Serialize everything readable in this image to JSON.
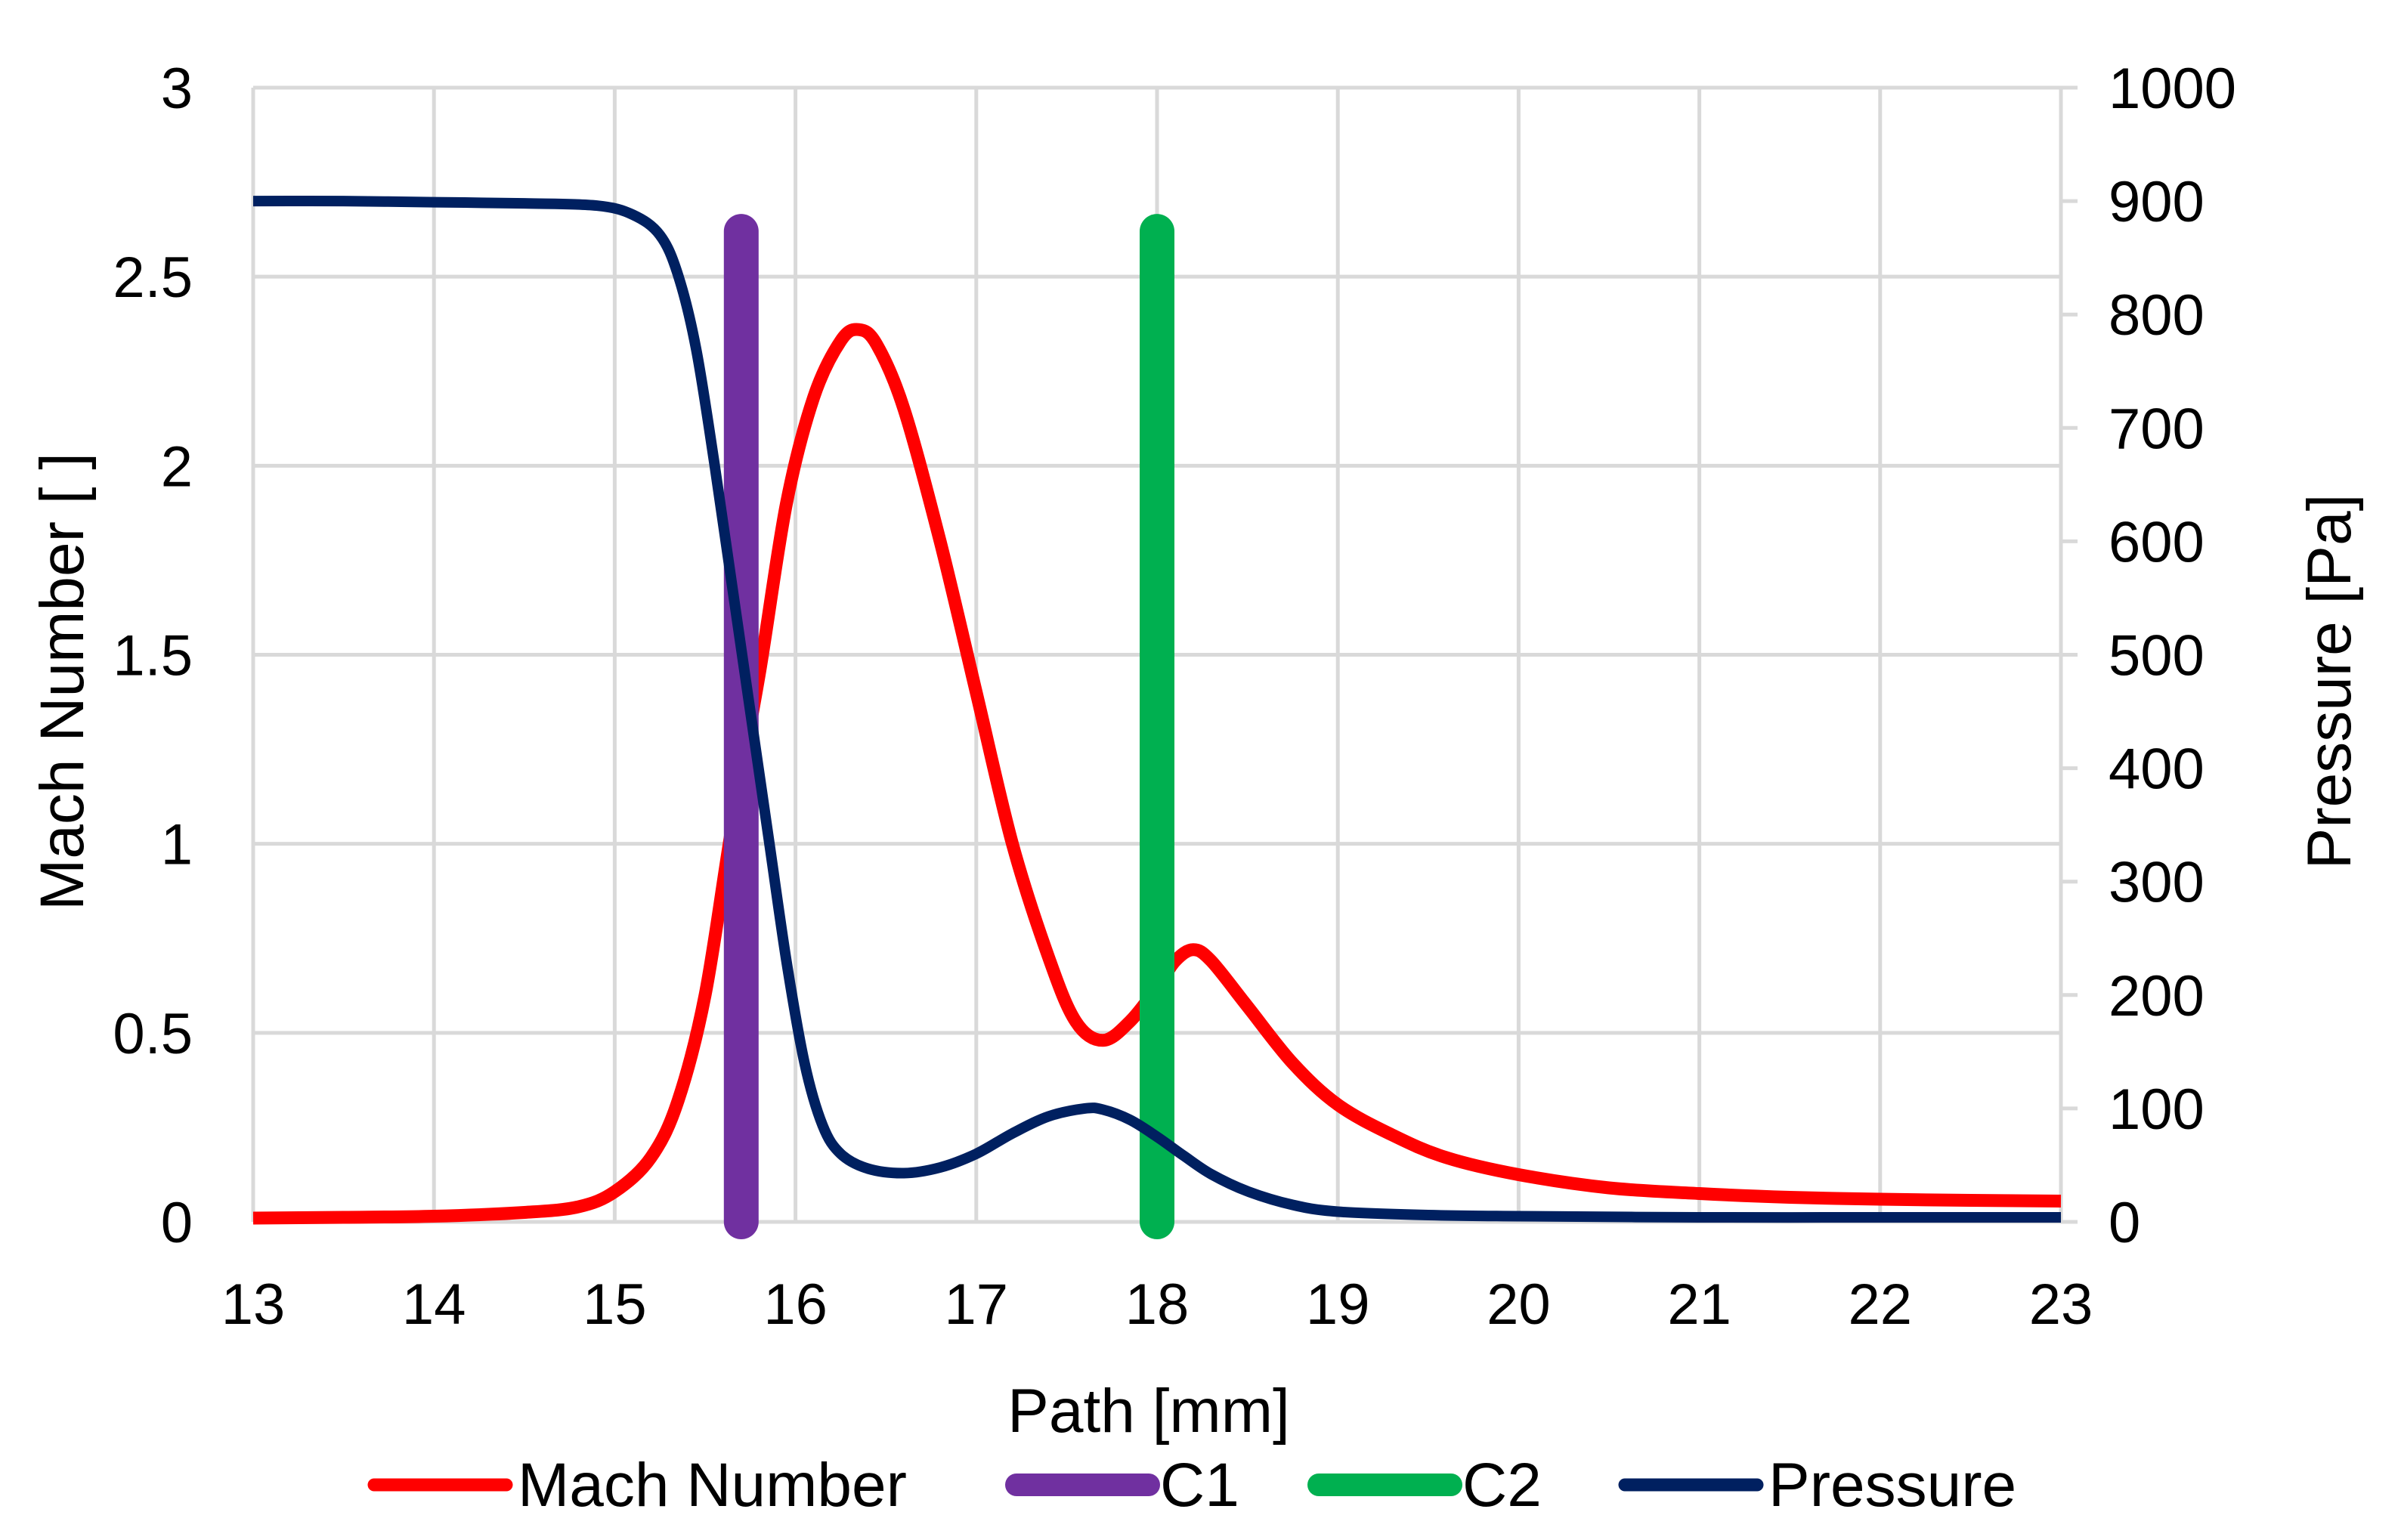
{
  "chart_data": {
    "type": "line",
    "x_label": "Path [mm]",
    "y_label_left": "Mach Number [ ]",
    "y_label_right": "Pressure [Pa]",
    "x_range": [
      13,
      23
    ],
    "y_left_range": [
      0,
      3
    ],
    "y_right_range": [
      0,
      1000
    ],
    "grid": true,
    "legend_position": "bottom",
    "x_ticks": [
      "13",
      "14",
      "15",
      "16",
      "17",
      "18",
      "19",
      "20",
      "21",
      "22",
      "23"
    ],
    "y_left_ticks": [
      "0",
      "0.5",
      "1",
      "1.5",
      "2",
      "2.5",
      "3"
    ],
    "y_right_ticks": [
      "0",
      "100",
      "200",
      "300",
      "400",
      "500",
      "600",
      "700",
      "800",
      "900",
      "1000"
    ],
    "series": [
      {
        "name": "Mach Number",
        "axis": "left",
        "color": "#ff0000",
        "points": [
          [
            13.0,
            0.01
          ],
          [
            13.5,
            0.012
          ],
          [
            14.0,
            0.015
          ],
          [
            14.5,
            0.025
          ],
          [
            14.8,
            0.04
          ],
          [
            15.0,
            0.08
          ],
          [
            15.2,
            0.17
          ],
          [
            15.35,
            0.32
          ],
          [
            15.5,
            0.6
          ],
          [
            15.65,
            1.05
          ],
          [
            15.8,
            1.45
          ],
          [
            15.95,
            1.9
          ],
          [
            16.1,
            2.18
          ],
          [
            16.25,
            2.33
          ],
          [
            16.35,
            2.36
          ],
          [
            16.45,
            2.32
          ],
          [
            16.6,
            2.15
          ],
          [
            16.8,
            1.8
          ],
          [
            17.0,
            1.4
          ],
          [
            17.2,
            1.0
          ],
          [
            17.4,
            0.7
          ],
          [
            17.55,
            0.53
          ],
          [
            17.7,
            0.48
          ],
          [
            17.85,
            0.53
          ],
          [
            18.0,
            0.62
          ],
          [
            18.1,
            0.69
          ],
          [
            18.2,
            0.72
          ],
          [
            18.3,
            0.69
          ],
          [
            18.5,
            0.57
          ],
          [
            18.75,
            0.42
          ],
          [
            19.0,
            0.31
          ],
          [
            19.3,
            0.23
          ],
          [
            19.6,
            0.17
          ],
          [
            20.0,
            0.125
          ],
          [
            20.5,
            0.09
          ],
          [
            21.0,
            0.075
          ],
          [
            21.5,
            0.065
          ],
          [
            22.0,
            0.06
          ],
          [
            22.5,
            0.057
          ],
          [
            23.0,
            0.055
          ]
        ]
      },
      {
        "name": "C1",
        "axis": "left",
        "color": "#7030a0",
        "points": [
          [
            15.7,
            0.0
          ],
          [
            15.7,
            2.62
          ]
        ]
      },
      {
        "name": "C2",
        "axis": "left",
        "color": "#00b050",
        "points": [
          [
            18.0,
            0.0
          ],
          [
            18.0,
            2.62
          ]
        ]
      },
      {
        "name": "Pressure",
        "axis": "right",
        "color": "#002060",
        "points": [
          [
            13.0,
            900
          ],
          [
            13.5,
            900
          ],
          [
            14.0,
            899
          ],
          [
            14.5,
            898
          ],
          [
            14.9,
            896
          ],
          [
            15.1,
            888
          ],
          [
            15.25,
            870
          ],
          [
            15.35,
            835
          ],
          [
            15.45,
            770
          ],
          [
            15.55,
            670
          ],
          [
            15.65,
            560
          ],
          [
            15.75,
            450
          ],
          [
            15.85,
            340
          ],
          [
            15.95,
            230
          ],
          [
            16.05,
            140
          ],
          [
            16.15,
            85
          ],
          [
            16.25,
            60
          ],
          [
            16.4,
            47
          ],
          [
            16.6,
            43
          ],
          [
            16.8,
            48
          ],
          [
            17.0,
            60
          ],
          [
            17.2,
            78
          ],
          [
            17.4,
            93
          ],
          [
            17.6,
            100
          ],
          [
            17.7,
            99
          ],
          [
            17.85,
            90
          ],
          [
            18.0,
            75
          ],
          [
            18.15,
            58
          ],
          [
            18.3,
            42
          ],
          [
            18.5,
            27
          ],
          [
            18.75,
            15
          ],
          [
            19.0,
            9
          ],
          [
            19.5,
            6
          ],
          [
            20.0,
            5
          ],
          [
            21.0,
            4
          ],
          [
            22.0,
            4
          ],
          [
            23.0,
            4
          ]
        ]
      }
    ]
  }
}
